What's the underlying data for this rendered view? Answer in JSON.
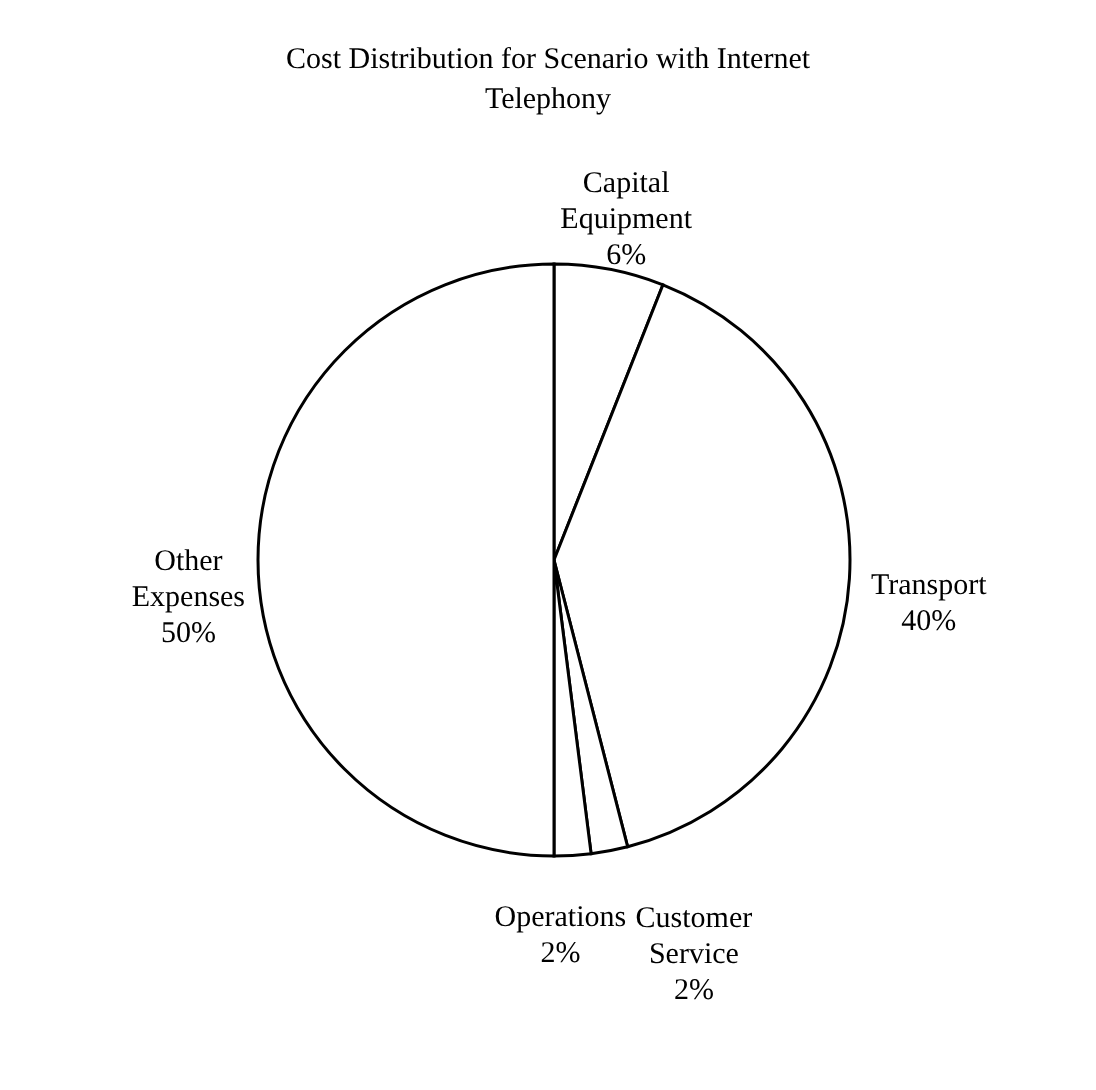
{
  "chart_data": {
    "type": "pie",
    "title": "Cost Distribution for Scenario with Internet Telephony",
    "categories": [
      "Capital Equipment",
      "Transport",
      "Customer Service",
      "Operations",
      "Other Expenses"
    ],
    "values": [
      6,
      40,
      2,
      2,
      50
    ],
    "value_labels": [
      "6%",
      "40%",
      "2%",
      "2%",
      "50%"
    ],
    "colors": [
      "#ffffff",
      "#ffffff",
      "#ffffff",
      "#ffffff",
      "#ffffff"
    ]
  }
}
